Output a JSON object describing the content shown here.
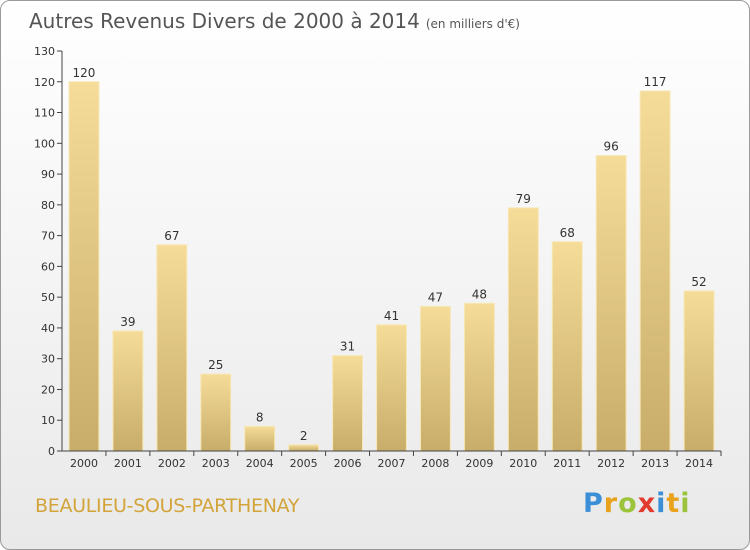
{
  "header": {
    "title": "Autres Revenus Divers de 2000 à 2014",
    "unit": "(en milliers d'€)"
  },
  "footer": {
    "place": "BEAULIEU-SOUS-PARTHENAY",
    "logo": [
      "P",
      "r",
      "o",
      "x",
      "i",
      "t",
      "i"
    ],
    "logo_colors": [
      "#3a8fd6",
      "#e8a21c",
      "#9bc43c",
      "#e23a2e",
      "#3a8fd6",
      "#e8a21c",
      "#9bc43c"
    ]
  },
  "chart_data": {
    "type": "bar",
    "categories": [
      "2000",
      "2001",
      "2002",
      "2003",
      "2004",
      "2005",
      "2006",
      "2007",
      "2008",
      "2009",
      "2010",
      "2011",
      "2012",
      "2013",
      "2014"
    ],
    "values": [
      120,
      39,
      67,
      25,
      8,
      2,
      31,
      41,
      47,
      48,
      79,
      68,
      96,
      117,
      52
    ],
    "ylim": [
      0,
      130
    ],
    "yticks": [
      0,
      10,
      20,
      30,
      40,
      50,
      60,
      70,
      80,
      90,
      100,
      110,
      120,
      130
    ],
    "grid": false,
    "bar_color_top": "#f5dc98",
    "bar_color_bottom": "#c8ad6a"
  }
}
